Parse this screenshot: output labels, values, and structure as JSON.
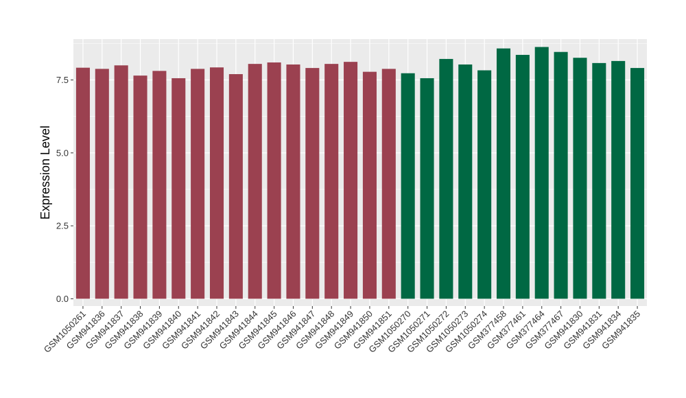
{
  "chart_data": {
    "type": "bar",
    "title": "",
    "xlabel": "",
    "ylabel": "Expression Level",
    "ylim": [
      -0.25,
      8.9
    ],
    "yticks": [
      0.0,
      2.5,
      5.0,
      7.5
    ],
    "ytick_labels": [
      "0.0",
      "2.5",
      "5.0",
      "7.5"
    ],
    "grid": true,
    "legend": "none",
    "colors": {
      "group_a": "#9b4150",
      "group_b": "#006843",
      "panel": "#ebebeb",
      "gridline": "#ffffff"
    },
    "categories": [
      "GSM1050261",
      "GSM941836",
      "GSM941837",
      "GSM941838",
      "GSM941839",
      "GSM941840",
      "GSM941841",
      "GSM941842",
      "GSM941843",
      "GSM941844",
      "GSM941845",
      "GSM941846",
      "GSM941847",
      "GSM941848",
      "GSM941849",
      "GSM941850",
      "GSM941851",
      "GSM1050270",
      "GSM1050271",
      "GSM1050272",
      "GSM1050273",
      "GSM1050274",
      "GSM377458",
      "GSM377461",
      "GSM377464",
      "GSM377467",
      "GSM941830",
      "GSM941831",
      "GSM941834",
      "GSM941835"
    ],
    "values": [
      7.92,
      7.88,
      8.0,
      7.65,
      7.81,
      7.56,
      7.88,
      7.93,
      7.7,
      8.05,
      8.1,
      8.03,
      7.91,
      8.05,
      8.12,
      7.78,
      7.88,
      7.73,
      7.56,
      8.22,
      8.03,
      7.83,
      8.58,
      8.36,
      8.63,
      8.46,
      8.26,
      8.08,
      8.15,
      7.91
    ],
    "groups": [
      "a",
      "a",
      "a",
      "a",
      "a",
      "a",
      "a",
      "a",
      "a",
      "a",
      "a",
      "a",
      "a",
      "a",
      "a",
      "a",
      "a",
      "b",
      "b",
      "b",
      "b",
      "b",
      "b",
      "b",
      "b",
      "b",
      "b",
      "b",
      "b",
      "b"
    ]
  }
}
